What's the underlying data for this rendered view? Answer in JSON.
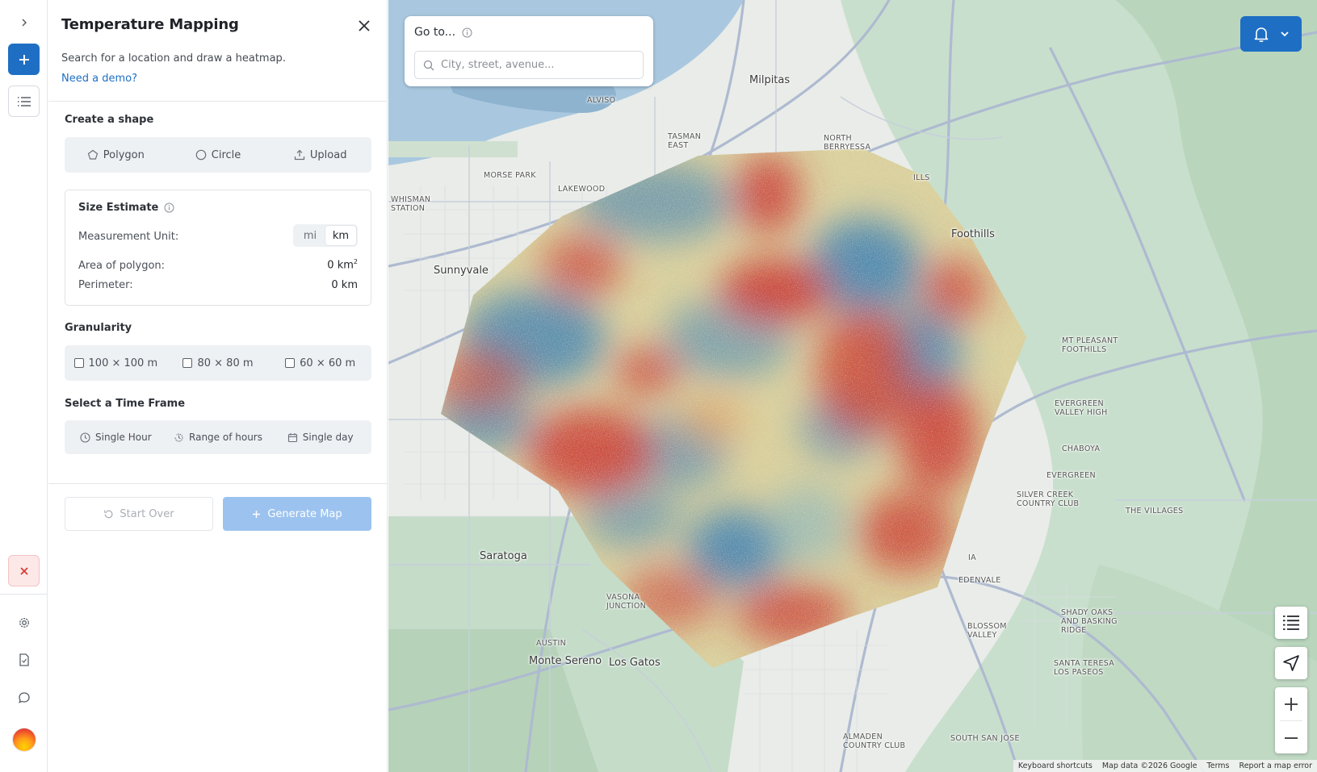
{
  "rail": {
    "icons": [
      "chevron-right-icon",
      "plus-icon",
      "list-icon",
      "close-icon",
      "gear-icon",
      "document-icon",
      "chat-icon",
      "avatar"
    ]
  },
  "panel": {
    "title": "Temperature Mapping",
    "description": "Search for a location and draw a heatmap.",
    "demo_link": "Need a demo?",
    "create_shape": {
      "title": "Create a shape",
      "options": [
        "Polygon",
        "Circle",
        "Upload"
      ]
    },
    "size_estimate": {
      "title": "Size Estimate",
      "unit_label": "Measurement Unit:",
      "units": [
        "mi",
        "km"
      ],
      "selected_unit": "km",
      "area_label": "Area of polygon:",
      "area_value": "0 km",
      "area_sup": "2",
      "perimeter_label": "Perimeter:",
      "perimeter_value": "0 km"
    },
    "granularity": {
      "title": "Granularity",
      "options": [
        "100 × 100 m",
        "80 × 80 m",
        "60 × 60 m"
      ]
    },
    "time_frame": {
      "title": "Select a Time Frame",
      "options": [
        "Single Hour",
        "Range of hours",
        "Single day"
      ]
    },
    "start_over": "Start Over",
    "generate": "Generate Map"
  },
  "map": {
    "goto_label": "Go to...",
    "search_placeholder": "City, street, avenue...",
    "labels": {
      "milpitas": "Milpitas",
      "alviso": "ALVISO",
      "tasman": "TASMAN",
      "east": "EAST",
      "north": "NORTH",
      "berryessa": "BERRYESSA",
      "morse_park": "MORSE PARK",
      "lakewood": "LAKEWOOD",
      "whisman": "WHISMAN",
      "station": "STATION",
      "sunnyvale": "Sunnyvale",
      "hills": "ILLS",
      "foothills": "Foothills",
      "mt_pleasant": "MT PLEASANT",
      "mt_pleasant2": "FOOTHILLS",
      "evergreen": "EVERGREEN",
      "valley_high": "VALLEY HIGH",
      "chaboya": "CHABOYA",
      "evergreen2": "EVERGREEN",
      "silver_creek": "SILVER CREEK",
      "country_club": "COUNTRY CLUB",
      "the_villages": "THE VILLAGES",
      "saratoga": "Saratoga",
      "edenvale": "EDENVALE",
      "vasona": "VASONA",
      "junction": "JUNCTION",
      "shady_oaks": "SHADY OAKS",
      "and_basking": "AND BASKING",
      "ridge": "RIDGE",
      "blossom": "BLOSSOM",
      "valley": "VALLEY",
      "austin": "AUSTIN",
      "monte_sereno": "Monte Sereno",
      "los_gatos": "Los Gatos",
      "santa_teresa": "SANTA TERESA",
      "los_paseos": "LOS PASEOS",
      "almaden": "ALMADEN",
      "almaden_cc": "COUNTRY CLUB",
      "south_san_jose": "SOUTH SAN JOSE",
      "ia": "IA"
    },
    "attribution": {
      "keyboard": "Keyboard shortcuts",
      "data": "Map data ©2026 Google",
      "terms": "Terms",
      "report": "Report a map error"
    },
    "colors": {
      "heat_hot": "#c8302a",
      "heat_warm": "#e49a55",
      "heat_mid": "#d9cf9c",
      "heat_cool": "#8fb7b8",
      "heat_cold": "#3d7fb2",
      "accent": "#1e6fc4"
    }
  }
}
